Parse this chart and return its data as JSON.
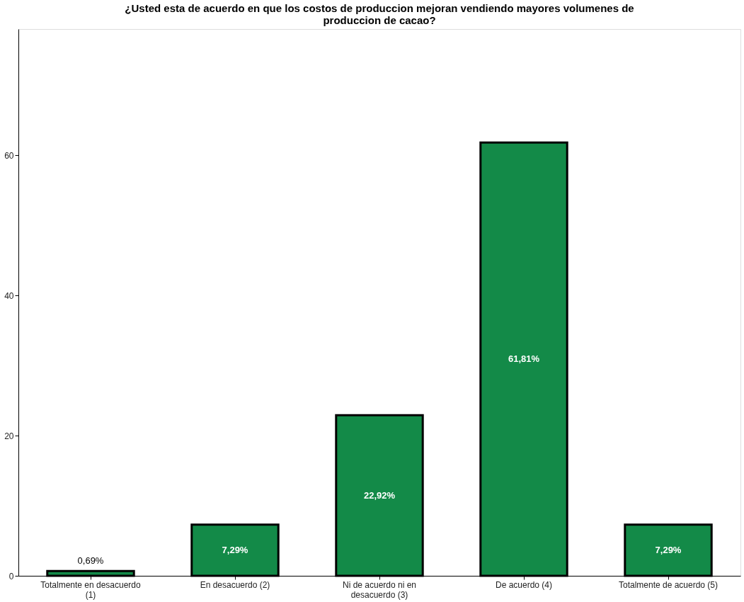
{
  "chart_data": {
    "type": "bar",
    "title": "¿Usted esta de acuerdo en que los costos de produccion mejoran vendiendo mayores volumenes de produccion de cacao?",
    "categories": [
      "Totalmente en desacuerdo (1)",
      "En desacuerdo (2)",
      "Ni de acuerdo ni en desacuerdo (3)",
      "De acuerdo (4)",
      "Totalmente de acuerdo (5)"
    ],
    "values": [
      0.69,
      7.29,
      22.92,
      61.81,
      7.29
    ],
    "value_labels": [
      "0,69%",
      "7,29%",
      "22,92%",
      "61,81%",
      "7,29%"
    ],
    "color": "#138a48",
    "ylim": [
      0,
      78
    ],
    "yticks": [
      0,
      20,
      40,
      60
    ],
    "grid": false
  }
}
